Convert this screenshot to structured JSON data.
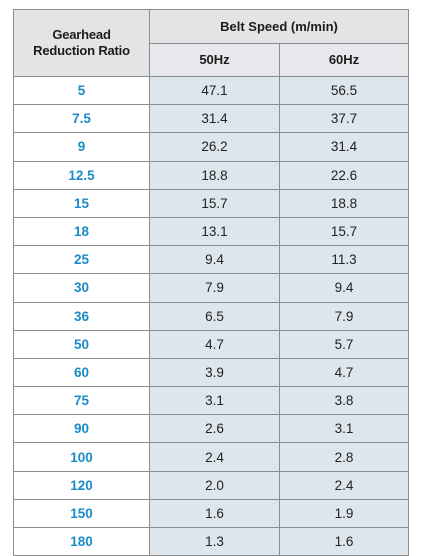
{
  "table": {
    "headers": {
      "ratio_line1": "Gearhead",
      "ratio_line2": "Reduction Ratio",
      "speed": "Belt Speed (m/min)",
      "hz50": "50Hz",
      "hz60": "60Hz"
    },
    "rows": [
      {
        "ratio": "5",
        "hz50": "47.1",
        "hz60": "56.5"
      },
      {
        "ratio": "7.5",
        "hz50": "31.4",
        "hz60": "37.7"
      },
      {
        "ratio": "9",
        "hz50": "26.2",
        "hz60": "31.4"
      },
      {
        "ratio": "12.5",
        "hz50": "18.8",
        "hz60": "22.6"
      },
      {
        "ratio": "15",
        "hz50": "15.7",
        "hz60": "18.8"
      },
      {
        "ratio": "18",
        "hz50": "13.1",
        "hz60": "15.7"
      },
      {
        "ratio": "25",
        "hz50": "9.4",
        "hz60": "11.3"
      },
      {
        "ratio": "30",
        "hz50": "7.9",
        "hz60": "9.4"
      },
      {
        "ratio": "36",
        "hz50": "6.5",
        "hz60": "7.9"
      },
      {
        "ratio": "50",
        "hz50": "4.7",
        "hz60": "5.7"
      },
      {
        "ratio": "60",
        "hz50": "3.9",
        "hz60": "4.7"
      },
      {
        "ratio": "75",
        "hz50": "3.1",
        "hz60": "3.8"
      },
      {
        "ratio": "90",
        "hz50": "2.6",
        "hz60": "3.1"
      },
      {
        "ratio": "100",
        "hz50": "2.4",
        "hz60": "2.8"
      },
      {
        "ratio": "120",
        "hz50": "2.0",
        "hz60": "2.4"
      },
      {
        "ratio": "150",
        "hz50": "1.6",
        "hz60": "1.9"
      },
      {
        "ratio": "180",
        "hz50": "1.3",
        "hz60": "1.6"
      }
    ]
  },
  "colors": {
    "ratio_text": "#1a8bc8",
    "header_bg": "#e3e4e6",
    "value_bg": "#dde6ec",
    "border": "#8c8c8c"
  }
}
